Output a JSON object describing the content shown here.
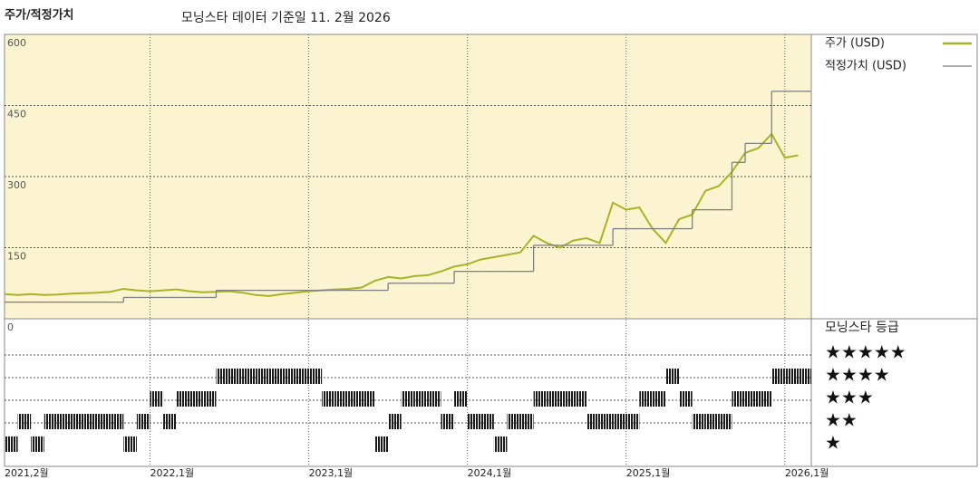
{
  "chart_data": {
    "type": "line",
    "title": "주가/적정가치",
    "subtitle": "모닝스타 데이터 기준일 11. 2월 2026",
    "x": [
      "2021-02",
      "2021-03",
      "2021-04",
      "2021-05",
      "2021-06",
      "2021-07",
      "2021-08",
      "2021-09",
      "2021-10",
      "2021-11",
      "2021-12",
      "2022-01",
      "2022-02",
      "2022-03",
      "2022-04",
      "2022-05",
      "2022-06",
      "2022-07",
      "2022-08",
      "2022-09",
      "2022-10",
      "2022-11",
      "2022-12",
      "2023-01",
      "2023-02",
      "2023-03",
      "2023-04",
      "2023-05",
      "2023-06",
      "2023-07",
      "2023-08",
      "2023-09",
      "2023-10",
      "2023-11",
      "2023-12",
      "2024-01",
      "2024-02",
      "2024-03",
      "2024-04",
      "2024-05",
      "2024-06",
      "2024-07",
      "2024-08",
      "2024-09",
      "2024-10",
      "2024-11",
      "2024-12",
      "2025-01",
      "2025-02",
      "2025-03",
      "2025-04",
      "2025-05",
      "2025-06",
      "2025-07",
      "2025-08",
      "2025-09",
      "2025-10",
      "2025-11",
      "2025-12",
      "2026-01",
      "2026-02"
    ],
    "xlim": [
      "2021-02",
      "2026-03"
    ],
    "xticks": [
      {
        "value": "2021-02",
        "label": "2021,2월"
      },
      {
        "value": "2022-01",
        "label": "2022,1월"
      },
      {
        "value": "2023-01",
        "label": "2023,1월"
      },
      {
        "value": "2024-01",
        "label": "2024,1월"
      },
      {
        "value": "2025-01",
        "label": "2025,1월"
      },
      {
        "value": "2026-01",
        "label": "2026,1월"
      }
    ],
    "ylim": [
      0,
      600
    ],
    "yticks": [
      0,
      150,
      300,
      450,
      600
    ],
    "grid": true,
    "series": [
      {
        "name": "주가 (USD)",
        "color": "#a9b327",
        "values": [
          52,
          50,
          52,
          50,
          51,
          53,
          54,
          55,
          57,
          63,
          60,
          58,
          60,
          62,
          58,
          56,
          57,
          58,
          55,
          50,
          48,
          52,
          55,
          58,
          60,
          62,
          63,
          66,
          80,
          88,
          85,
          90,
          92,
          100,
          110,
          115,
          125,
          130,
          135,
          140,
          175,
          160,
          150,
          165,
          170,
          160,
          245,
          230,
          235,
          190,
          160,
          210,
          220,
          270,
          280,
          310,
          350,
          360,
          390,
          340,
          345
        ]
      },
      {
        "name": "적정가치 (USD)",
        "color": "#7f7f7f",
        "step": true,
        "values": [
          35,
          35,
          35,
          35,
          35,
          35,
          35,
          35,
          35,
          45,
          45,
          45,
          45,
          45,
          45,
          45,
          60,
          60,
          60,
          60,
          60,
          60,
          60,
          60,
          60,
          60,
          60,
          60,
          60,
          75,
          75,
          75,
          75,
          75,
          100,
          100,
          100,
          100,
          100,
          100,
          155,
          155,
          155,
          155,
          155,
          155,
          190,
          190,
          190,
          190,
          190,
          190,
          230,
          230,
          230,
          330,
          370,
          370,
          480,
          480,
          480
        ]
      }
    ],
    "rating_title": "모닝스타 등급",
    "rating_rows": [
      {
        "value": 5,
        "label": "★★★★★"
      },
      {
        "value": 4,
        "label": "★★★★"
      },
      {
        "value": 3,
        "label": "★★★"
      },
      {
        "value": 2,
        "label": "★★"
      },
      {
        "value": 1,
        "label": "★"
      }
    ],
    "ratings": [
      1,
      2,
      1,
      2,
      2,
      2,
      2,
      2,
      2,
      1,
      2,
      3,
      2,
      3,
      3,
      3,
      4,
      4,
      4,
      4,
      4,
      4,
      4,
      4,
      3,
      3,
      3,
      3,
      1,
      2,
      3,
      3,
      3,
      2,
      3,
      2,
      2,
      1,
      2,
      2,
      3,
      3,
      3,
      3,
      2,
      2,
      2,
      2,
      3,
      3,
      4,
      3,
      2,
      2,
      2,
      3,
      3,
      3,
      4,
      4,
      4
    ]
  }
}
